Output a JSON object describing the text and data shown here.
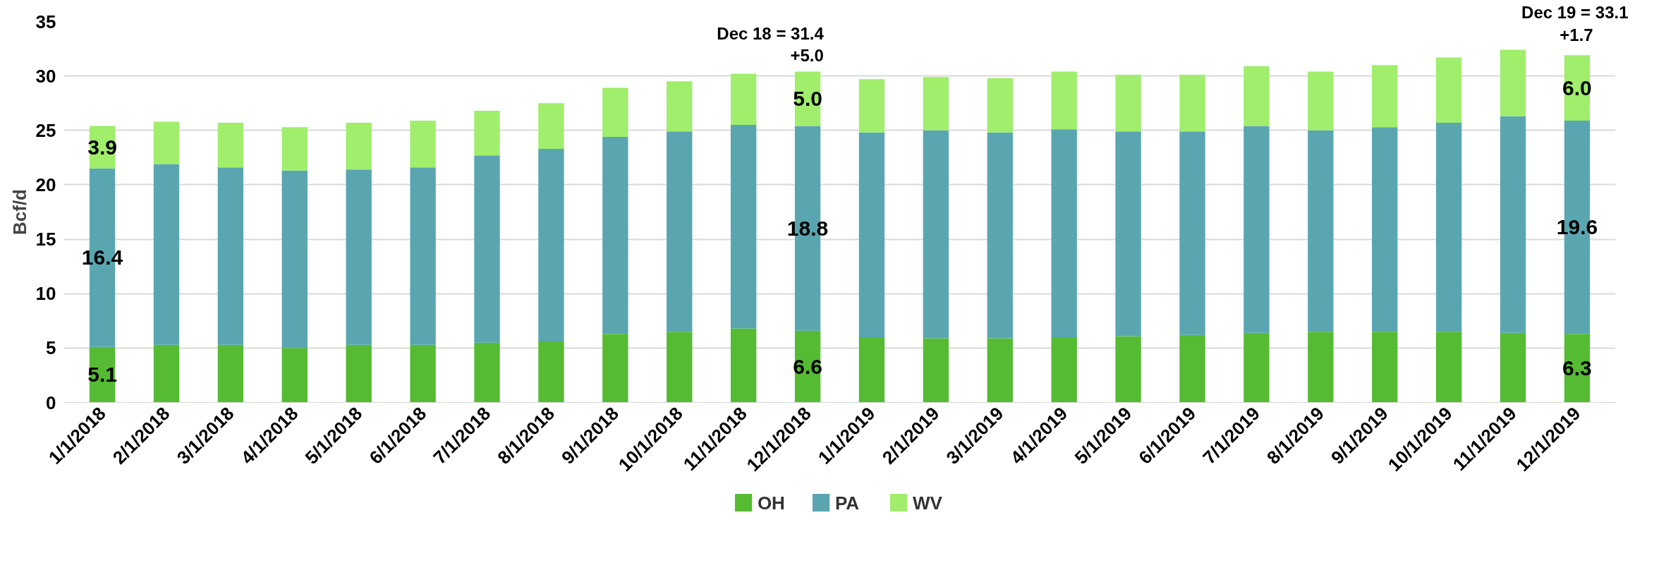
{
  "chart_data": {
    "type": "bar",
    "stacked": true,
    "ylabel": "Bcf/d",
    "categories": [
      "1/1/2018",
      "2/1/2018",
      "3/1/2018",
      "4/1/2018",
      "5/1/2018",
      "6/1/2018",
      "7/1/2018",
      "8/1/2018",
      "9/1/2018",
      "10/1/2018",
      "11/1/2018",
      "12/1/2018",
      "1/1/2019",
      "2/1/2019",
      "3/1/2019",
      "4/1/2019",
      "5/1/2019",
      "6/1/2019",
      "7/1/2019",
      "8/1/2019",
      "9/1/2019",
      "10/1/2019",
      "11/1/2019",
      "12/1/2019"
    ],
    "series": [
      {
        "name": "OH",
        "color": "#55bb33",
        "values": [
          5.1,
          5.3,
          5.3,
          5.0,
          5.3,
          5.3,
          5.5,
          5.6,
          6.3,
          6.5,
          6.8,
          6.6,
          6.0,
          5.9,
          5.9,
          6.0,
          6.1,
          6.2,
          6.4,
          6.5,
          6.5,
          6.5,
          6.4,
          6.3
        ],
        "value_labels": [
          "5.1",
          null,
          null,
          null,
          null,
          null,
          null,
          null,
          null,
          null,
          null,
          "6.6",
          null,
          null,
          null,
          null,
          null,
          null,
          null,
          null,
          null,
          null,
          null,
          "6.3"
        ]
      },
      {
        "name": "PA",
        "color": "#5aa6b0",
        "values": [
          16.4,
          16.6,
          16.3,
          16.3,
          16.1,
          16.3,
          17.2,
          17.7,
          18.1,
          18.4,
          18.7,
          18.8,
          18.8,
          19.1,
          18.9,
          19.1,
          18.8,
          18.7,
          19.0,
          18.5,
          18.8,
          19.2,
          19.9,
          19.6
        ],
        "value_labels": [
          "16.4",
          null,
          null,
          null,
          null,
          null,
          null,
          null,
          null,
          null,
          null,
          "18.8",
          null,
          null,
          null,
          null,
          null,
          null,
          null,
          null,
          null,
          null,
          null,
          "19.6"
        ]
      },
      {
        "name": "WV",
        "color": "#a0ee6c",
        "values": [
          3.9,
          3.9,
          4.1,
          4.0,
          4.3,
          4.3,
          4.1,
          4.2,
          4.5,
          4.6,
          4.7,
          5.0,
          4.9,
          4.9,
          5.0,
          5.3,
          5.2,
          5.2,
          5.5,
          5.4,
          5.7,
          6.0,
          6.1,
          6.0
        ],
        "value_labels": [
          "3.9",
          null,
          null,
          null,
          null,
          null,
          null,
          null,
          null,
          null,
          null,
          "5.0",
          null,
          null,
          null,
          null,
          null,
          null,
          null,
          null,
          null,
          null,
          null,
          "6.0"
        ]
      }
    ],
    "ylim": [
      0,
      35
    ],
    "yticks": [
      0,
      5,
      10,
      15,
      20,
      25,
      30,
      35
    ],
    "grid": "y",
    "legend": "bottom",
    "annotations": [
      "Dec 18 = 31.4",
      "+5.0",
      "Dec 19 = 33.1",
      "+1.7"
    ]
  }
}
